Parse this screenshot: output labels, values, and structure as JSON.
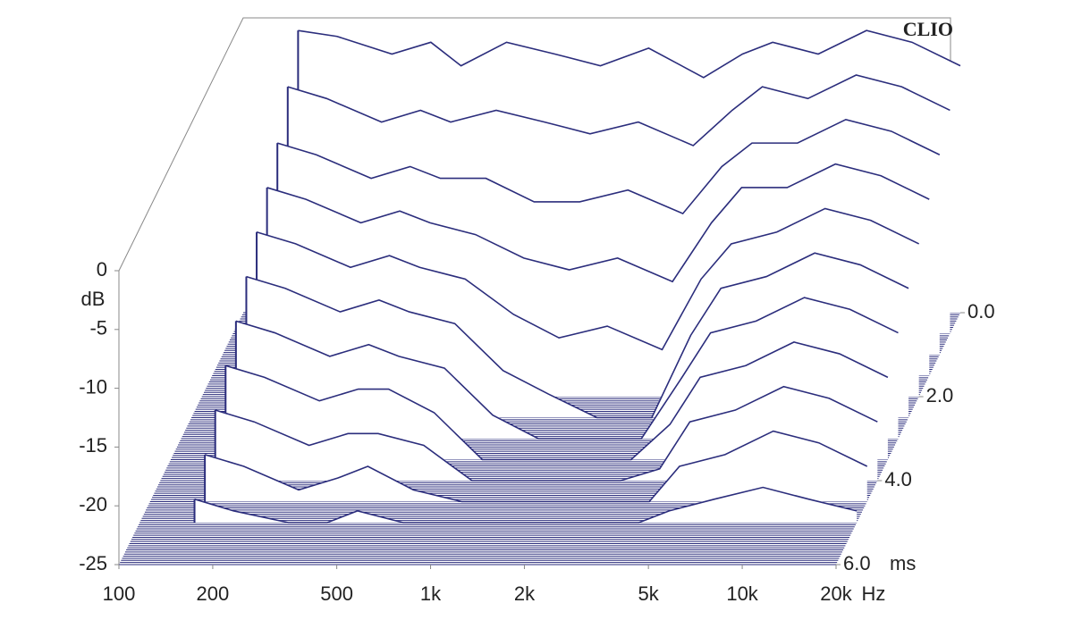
{
  "chart_data": {
    "type": "waterfall",
    "brand": "CLIO",
    "y_label": "dB",
    "x_unit": "Hz",
    "z_unit": "ms",
    "color": "#2b2d7c",
    "log_x": true,
    "xlim": [
      100,
      20000
    ],
    "xticks": [
      100,
      200,
      500,
      {
        "value": 1000,
        "label": "1k"
      },
      {
        "value": 2000,
        "label": "2k"
      },
      {
        "value": 5000,
        "label": "5k"
      },
      {
        "value": 10000,
        "label": "10k"
      },
      {
        "value": 20000,
        "label": "20k"
      }
    ],
    "ylim": [
      -25,
      0
    ],
    "yticks": [
      0,
      -5,
      -10,
      -15,
      -20,
      -25
    ],
    "zlim": [
      0,
      6
    ],
    "zticks": [
      {
        "value": 0,
        "label": "0.0"
      },
      {
        "value": 2,
        "label": "2.0"
      },
      {
        "value": 4,
        "label": "4.0"
      },
      {
        "value": 6,
        "label": "6.0"
      }
    ],
    "x": [
      150,
      200,
      300,
      400,
      500,
      700,
      1000,
      1400,
      2000,
      3000,
      4000,
      5000,
      7000,
      10000,
      14000,
      20000
    ],
    "slices": [
      {
        "time": 0,
        "values": [
          -1,
          -1.5,
          -3,
          -2,
          -4,
          -2,
          -3,
          -4,
          -2.5,
          -5,
          -3,
          -2,
          -3,
          -1,
          -2,
          -4
        ]
      },
      {
        "time": 0.5,
        "values": [
          -4,
          -5,
          -7,
          -6,
          -7,
          -6,
          -7,
          -8,
          -7,
          -9,
          -6,
          -4,
          -5,
          -3,
          -4,
          -6
        ]
      },
      {
        "time": 1,
        "values": [
          -7,
          -8,
          -10,
          -9,
          -10,
          -10,
          -12,
          -12,
          -11,
          -13,
          -9,
          -7,
          -7,
          -5,
          -6,
          -8
        ]
      },
      {
        "time": 1.5,
        "values": [
          -9,
          -10,
          -12,
          -11,
          -12,
          -13,
          -15,
          -16,
          -15,
          -17,
          -12,
          -9,
          -9,
          -7,
          -8,
          -10
        ]
      },
      {
        "time": 2,
        "values": [
          -11,
          -12,
          -14,
          -13,
          -14,
          -15,
          -18,
          -20,
          -19,
          -21,
          -15,
          -12,
          -11,
          -9,
          -10,
          -12
        ]
      },
      {
        "time": 2.5,
        "values": [
          -13,
          -14,
          -16,
          -15,
          -16,
          -17,
          -21,
          -23,
          -25,
          -25,
          -18,
          -14,
          -13,
          -11,
          -12,
          -14
        ]
      },
      {
        "time": 3,
        "values": [
          -15,
          -16,
          -18,
          -17,
          -18,
          -19,
          -23,
          -25,
          -25,
          -25,
          -20,
          -16,
          -15,
          -13,
          -14,
          -16
        ]
      },
      {
        "time": 3.5,
        "values": [
          -17,
          -18,
          -20,
          -19,
          -19,
          -21,
          -25,
          -25,
          -25,
          -25,
          -22,
          -18,
          -17,
          -15,
          -16,
          -18
        ]
      },
      {
        "time": 4,
        "values": [
          -19,
          -20,
          -22,
          -21,
          -21,
          -22,
          -25,
          -25,
          -25,
          -25,
          -24,
          -20,
          -19,
          -17,
          -18,
          -20
        ]
      },
      {
        "time": 4.5,
        "values": [
          -21,
          -22,
          -24,
          -23,
          -22,
          -24,
          -25,
          -25,
          -25,
          -25,
          -25,
          -22,
          -21,
          -19,
          -20,
          -22
        ]
      },
      {
        "time": 5,
        "values": [
          -23,
          -24,
          -25,
          -25,
          -24,
          -25,
          -25,
          -25,
          -25,
          -25,
          -25,
          -24,
          -23,
          -22,
          -23,
          -24
        ]
      }
    ]
  }
}
